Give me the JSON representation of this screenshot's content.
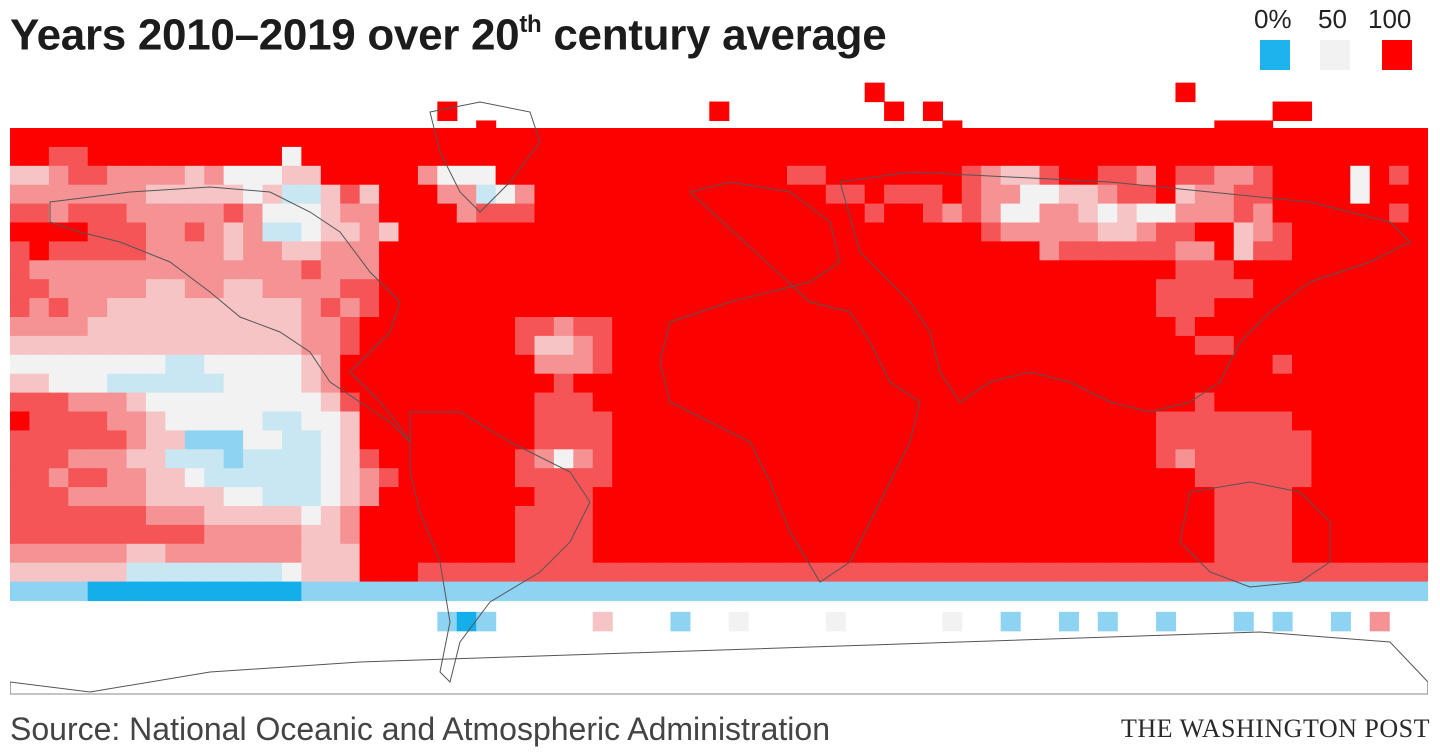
{
  "title": {
    "main": "Years 2010–2019 over 20",
    "superscript": "th",
    "tail": " century average"
  },
  "legend": {
    "labels": [
      "0%",
      "50",
      "100"
    ],
    "colors": [
      "#1fb3ee",
      "#f2f2f2",
      "#ff0000"
    ]
  },
  "source": "Source: National Oceanic and Atmospheric Administration",
  "credit": "THE WASHINGTON POST",
  "colors": {
    "c0": "#14aeea",
    "c1": "#8fd3f2",
    "c2": "#c9e6f3",
    "c3": "#f2f2f2",
    "c4": "#f7c4c6",
    "c5": "#f59293",
    "c6": "#f55556",
    "c7": "#fd0000",
    "coast": "#555555",
    "frame": "#888888"
  },
  "grid_map": [
    "0.....................................................................................................................",
    "1.....................................................................................................................",
    "2.........................................8.......................................8...............................",
    "3.........................................8.......................................8...............................",
    "4..........................................................8888888....8...........................................",
    "5..........................................................8888888....8...........................................",
    "6.....................8...8...8.....8....88.8.8...8.................777777777777...........888888....888........8...",
    "7........................................88.8.8...8.........7.7777777777777777........................8..8...8.....",
    "8.888..8.8.6.8.8.6.6.8.8888888.6.8.88.8...888.8.8...8888888888888.7.7777777777777777777.6.8888888.8888888888888888.",
    "9.........................................8...8.8.8...88888888888...77777777777777777777777....8.8.888888888888888.",
    "0.88788887788777777..77.77...7.77..777777777777.....777.77777777777777777777777777777777777777777777777777777777777.",
    "1.7.777777777777..77...777777777.8.777777.777777.77.7777777777777777777777777777777777777777777777777777777777777777",
    "2.77777777777777777777777777777777777777777777777777777777777777777777777777777777777777777777777777777777777777777.",
    "3.77777777777777777777777777777777777777777777777777777777777777777777777777777777777777777777777777777777777777777.",
    "4.777777777777777777777777777777777777777777777777777777777777777777777777777777777777777777777777777777777777777777",
    "5.777777777777777777777777777777777777777777777777777777777777777777777777777777777777777777777777777777777777777777",
    "6.777777777777777777777777777777777777777777777777777777777777777777777777777777777777777777777777777777777777777777",
    "7.777777777777777777777777777777777777777777777777777777777777777777777777777777777777777777777777777777777777777777",
    "8.777777777777777777777777777777777777777777777777777777777777777777777777777777777777777777777777777777777777777777",
    "9.777777777777777777777777777777777777777777777777777777777777777777777777777777777777777777777777777777777777777777"
  ],
  "cells": [
    "7777777777777777777777777777777777777777777777777777777777777777777777777",
    "7766777777777737777777777777777777777777777777777777777777777777777777777",
    "4456655554533344777775333777777777777777667777777654467766576655677773767",
    "5555555444443422464777552357777777777777776676667655334456674556677773777",
    "6656665555565333455777756667777777777777777767765653355434335556577777767",
    "7777666556545223445477777777777777777777777777777765555544566774567777777",
    "6766666555545544555777777777777777777777777777777777756666665574667777777",
    "6555555555555556555777777777777777777777777777777777777777776667777777777",
    "6655555445544555566777777777777777777777777777777777777777766666777777777",
    "6565544444444445656777777777777777777777777777777777777777766677777777777",
    "5555444444444445567777777766566777777777777777777777777777776777777777777",
    "4444444444444445567777777764456777777777777777777777777777777667777777777",
    "3333333322333334577777777775556777777777777777777777777777777777767777777",
    "4433322222233334577777777777677777777777777777777777777777777777777777777",
    "6665554333333333467777777776667777777777777777777777777777777677777777777",
    "7666655433333223347777777776666777777777777777777777777777766666667777777",
    "6666665441113322347777777776666777777777777777777777777777766666666777777",
    "6665554422212222346777777765356777777777777777777777777777765666666777777",
    "6656655443222222345677777766666777777777777777777777777777777666666777777",
    "6665555444433222345777777776667777777777777777777777777777777766667777777",
    "6666666555444443457777777766667777777777777777777777777777777766667777777",
    "6666666666555554457777777766667777777777777777777777777777777766667777777",
    "5555554455555554447777777766667777777777777777777777777777777766667777777",
    "4444442222222234447776666666666666666666666666666666666666666666666666666",
    "1111000000000001111111111111111111111111111111111111111111111111111111111"
  ],
  "map_rows": [
    "...........................................................................",
    "..............................................888..........................",
    "...................................888888888888888888888...................",
    "7777777777...7777777777777777777777777777777777777777777777777777777777777",
    "77777777777777777777777777777777777777777777777777777777777777777777777777",
    "66777777777777777777777777777777777777777777777777777777777777777777777777",
    "55566666677777777777777777777777777777777777777777777777777777777777777777",
    "55555555567777777777777777777777777777777777777777777777777777777777777777",
    "66666555556777777777777777777777777777777777777777777777777777777777777777",
    "66666665555567777777777777777777777777777777777777777777777777777777777777",
    "66665555444556777777777777777777777777777777777777777777777777777777777777",
    "55554444444455677777777777777777777777777777777777777777777777777777777777",
    "55444443333444567777777777777777777777777777777777777777777777777777777777",
    "44443333333334457777777777777777777777777777777777777777777777777777777777",
    "33322222222333456777777777777777777777777777777777777777777777777777777777",
    "55444333333334457777777777777777777777777777777777777777777777777777777777",
    "66655544433334567777777777777777777777777777777777777777777777777777777777",
    "77666555443334567777777777777777777777777777777777777777777777777777777777",
    "77766665554434567777777777777777777777777777777777777777777777777777777777",
    "77776666655544567777777777777777777777777777777777777777777777777777777777",
    "77777666666555567777777777777777777777777777777777777777777777777777777777",
    "77777666666655567777777777777777777777777777777777777777777777777777777777",
    "66666555555544447777777777777777777777777777777777777777777777777777777777",
    "44333322222222234447777777777777777777777777777777777777777777777777777777",
    "11110000000000111111222222222222222222222222222222222222222222222222222222",
    "...................................................................................",
    "..........................................................................."
  ],
  "extras": "",
  "rows": [
    "......................8..........................................8...................",
    "7.........8..........8.........88.........777777....7.8....8....8..88.....888.888..7....7",
    "7..7.77.77.7.7.77.7.8887.887..7.8.7777777777777777777777777777777777777.77777777777777777",
    "6456665577777777777777777777777777777777777777777777777777777777777777777777777777777777",
    "6444444666666666666777777777777777777777777777777777777777777777777777777777777777777777"
  ],
  "grid": [
    "..........................8............................8..........................",
    "6..7.7.7...............7...8.7.6........777777.....7..6.6.....5.65.5.777.7.6.....6.6.....6.6.6",
    "7..7.77.7..7.7777777777777777...77..........................................................77",
    "677777777777777777776666667777777775577777777777777777777777777777777777777777777777777777777777",
    "665665555566677777766666677777777766677777777777777777777777777777777777777777777777777777777777",
    "56655555666677777776555556777777777777777777777777777777777777777777777777777777777777777777777",
    "666665555555566777766665567777777777777777777777777777777777777777777777777777777777777777777777"
  ]
}
